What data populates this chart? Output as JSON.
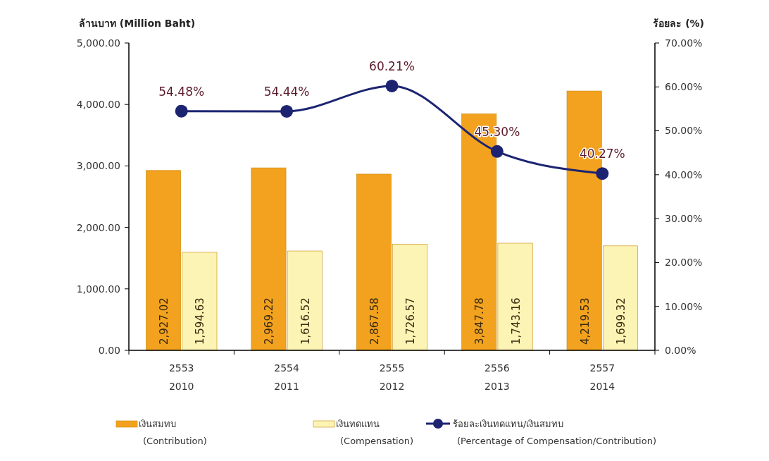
{
  "chart_data": {
    "type": "bar",
    "xlabel": null,
    "ylabel": "ล้านบาท (Million Baht)",
    "y2label": "ร้อยละ (%)",
    "categories": [
      "2553\n2010",
      "2554\n2011",
      "2555\n2012",
      "2556\n2013",
      "2557\n2014"
    ],
    "series": [
      {
        "name": "เงินสมทบ\n(Contribution)",
        "color": "#f2a21e",
        "values": [
          2927.02,
          2969.22,
          2867.58,
          3847.78,
          4219.53
        ],
        "value_labels": [
          "2,927.02",
          "2,969.22",
          "2,867.58",
          "3,847.78",
          "4,219.53"
        ]
      },
      {
        "name": "เงินทดแทน\n(Compensation)",
        "color": "#fbf4b4",
        "values": [
          1594.63,
          1616.52,
          1726.57,
          1743.16,
          1699.32
        ],
        "value_labels": [
          "1,594.63",
          "1,616.52",
          "1,726.57",
          "1,743.16",
          "1,699.32"
        ]
      },
      {
        "name": "ร้อยละเงินทดแทน/เงินสมทบ\n(Percentage of Compensation/Contribution)",
        "type": "line",
        "axis": "y2",
        "color": "#1c2472",
        "values": [
          54.48,
          54.44,
          60.21,
          45.3,
          40.27
        ],
        "value_labels": [
          "54.48%",
          "54.44%",
          "60.21%",
          "45.30%",
          "40.27%"
        ]
      }
    ],
    "ylim": [
      0,
      5000
    ],
    "yticks": [
      {
        "value": 0,
        "label": "0.00"
      },
      {
        "value": 1000,
        "label": "1,000.00"
      },
      {
        "value": 2000,
        "label": "2,000.00"
      },
      {
        "value": 3000,
        "label": "3,000.00"
      },
      {
        "value": 4000,
        "label": "4,000.00"
      },
      {
        "value": 5000,
        "label": "5,000.00"
      }
    ],
    "y2lim": [
      0,
      70
    ],
    "y2ticks": [
      {
        "value": 0,
        "label": "0.00%"
      },
      {
        "value": 10,
        "label": "10.00%"
      },
      {
        "value": 20,
        "label": "20.00%"
      },
      {
        "value": 30,
        "label": "30.00%"
      },
      {
        "value": 40,
        "label": "40.00%"
      },
      {
        "value": 50,
        "label": "50.00%"
      },
      {
        "value": 60,
        "label": "60.00%"
      },
      {
        "value": 70,
        "label": "70.00%"
      }
    ],
    "grid": false,
    "legend": "bottom",
    "marker": "circle",
    "line_style": "solid"
  }
}
